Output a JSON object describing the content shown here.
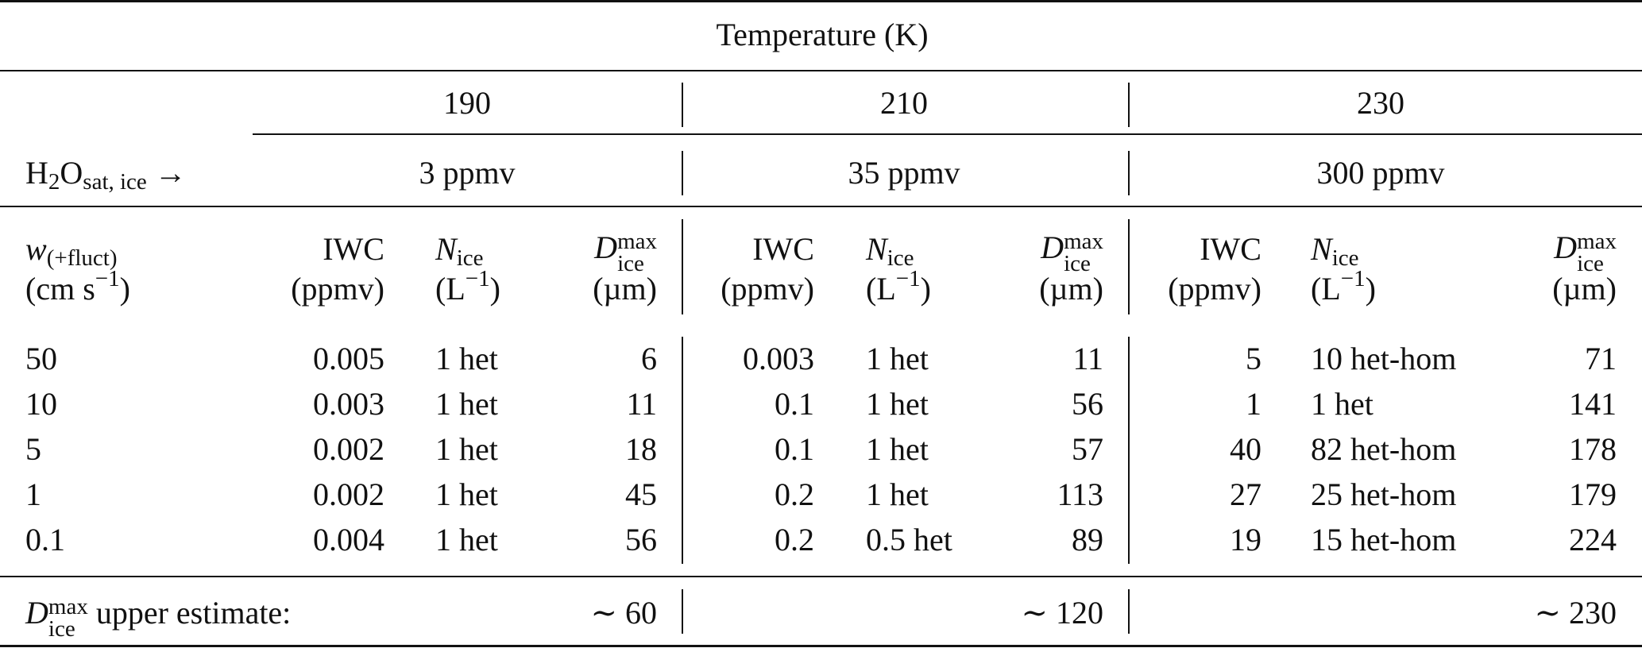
{
  "header": {
    "title": "Temperature (K)",
    "temperatures": [
      "190",
      "210",
      "230"
    ],
    "sat_label_main": "H",
    "sat_label_2": "2",
    "sat_label_O": "O",
    "sat_label_sub": "sat, ice",
    "sat_label_arrow": "→",
    "saturation": [
      "3 ppmv",
      "35 ppmv",
      "300 ppmv"
    ]
  },
  "columns": {
    "w_symbol": "w",
    "w_sub": "(+fluct)",
    "w_unit": "(cm s",
    "w_unit_sup": "−1",
    "w_unit_close": ")",
    "iwc": "IWC",
    "iwc_unit": "(ppmv)",
    "nice_symbol": "N",
    "nice_sub": "ice",
    "nice_unit": "(L",
    "nice_unit_sup": "−1",
    "nice_unit_close": ")",
    "d_symbol": "D",
    "d_sup": "max",
    "d_sub": "ice",
    "d_unit": "(µm)"
  },
  "rows": [
    {
      "w": "50",
      "g190": [
        "0.005",
        "1 het",
        "6"
      ],
      "g210": [
        "0.003",
        "1 het",
        "11"
      ],
      "g230": [
        "5",
        "10 het-hom",
        "71"
      ]
    },
    {
      "w": "10",
      "g190": [
        "0.003",
        "1 het",
        "11"
      ],
      "g210": [
        "0.1",
        "1 het",
        "56"
      ],
      "g230": [
        "1",
        "1 het",
        "141"
      ]
    },
    {
      "w": "5",
      "g190": [
        "0.002",
        "1 het",
        "18"
      ],
      "g210": [
        "0.1",
        "1 het",
        "57"
      ],
      "g230": [
        "40",
        "82 het-hom",
        "178"
      ]
    },
    {
      "w": "1",
      "g190": [
        "0.002",
        "1 het",
        "45"
      ],
      "g210": [
        "0.2",
        "1 het",
        "113"
      ],
      "g230": [
        "27",
        "25 het-hom",
        "179"
      ]
    },
    {
      "w": "0.1",
      "g190": [
        "0.004",
        "1 het",
        "56"
      ],
      "g210": [
        "0.2",
        "0.5 het",
        "89"
      ],
      "g230": [
        "19",
        "15 het-hom",
        "224"
      ]
    }
  ],
  "footer": {
    "d_symbol": "D",
    "d_sup": "max",
    "d_sub": "ice",
    "label": "upper estimate:",
    "estimates": [
      "∼ 60",
      "∼ 120",
      "∼ 230"
    ]
  }
}
